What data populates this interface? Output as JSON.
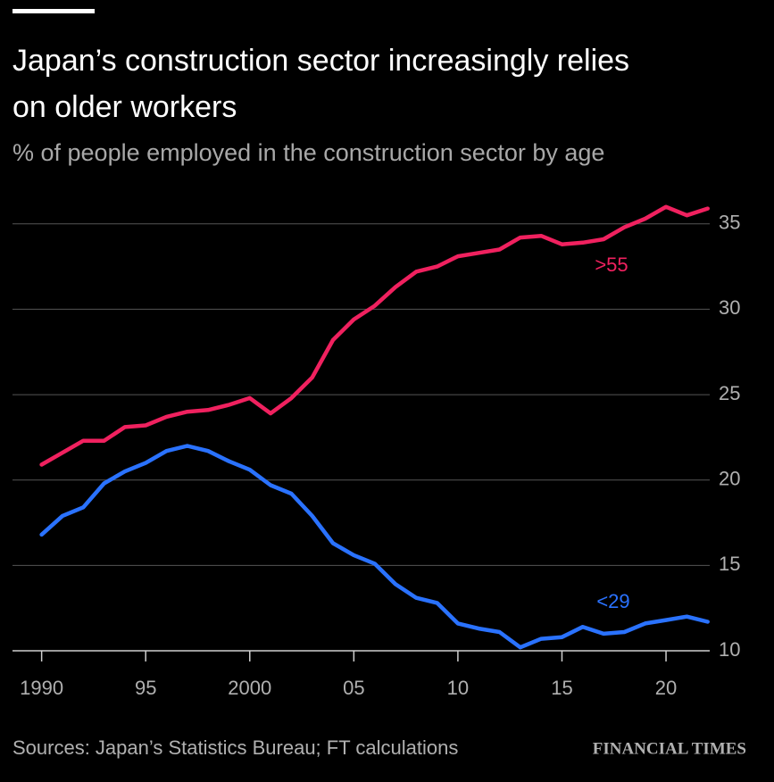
{
  "chart_data": {
    "type": "line",
    "title_lines": [
      "Japan’s construction sector increasingly relies",
      "on older workers"
    ],
    "subtitle": "% of people employed in the construction sector by age",
    "x": [
      1990,
      1991,
      1992,
      1993,
      1994,
      1995,
      1996,
      1997,
      1998,
      1999,
      2000,
      2001,
      2002,
      2003,
      2004,
      2005,
      2006,
      2007,
      2008,
      2009,
      2010,
      2011,
      2012,
      2013,
      2014,
      2015,
      2016,
      2017,
      2018,
      2019,
      2020,
      2021,
      2022
    ],
    "series": [
      {
        "name": ">55",
        "color": "#f0215f",
        "values": [
          20.9,
          21.6,
          22.3,
          22.3,
          23.1,
          23.2,
          23.7,
          24.0,
          24.1,
          24.4,
          24.8,
          23.9,
          24.8,
          26.0,
          28.2,
          29.4,
          30.2,
          31.3,
          32.2,
          32.5,
          33.1,
          33.3,
          33.5,
          34.2,
          34.3,
          33.8,
          33.9,
          34.1,
          34.8,
          35.3,
          36.0,
          35.5,
          35.9
        ]
      },
      {
        "name": "<29",
        "color": "#2a72ff",
        "values": [
          16.8,
          17.9,
          18.4,
          19.8,
          20.5,
          21.0,
          21.7,
          22.0,
          21.7,
          21.1,
          20.6,
          19.7,
          19.2,
          17.9,
          16.3,
          15.6,
          15.1,
          13.9,
          13.1,
          12.8,
          11.6,
          11.3,
          11.1,
          10.2,
          10.7,
          10.8,
          11.4,
          11.0,
          11.1,
          11.6,
          11.8,
          12.0,
          11.7
        ]
      }
    ],
    "xlim": [
      1988.6,
      2022.1
    ],
    "ylim": [
      10,
      36.4
    ],
    "xticks": [
      1990,
      {
        "value": 1995,
        "label": "95"
      },
      2000,
      {
        "value": 2005,
        "label": "05"
      },
      {
        "value": 2010,
        "label": "10"
      },
      {
        "value": 2015,
        "label": "15"
      },
      {
        "value": 2020,
        "label": "20"
      }
    ],
    "yticks": [
      10,
      15,
      20,
      25,
      30,
      35
    ],
    "grid": true,
    "source": "Sources: Japan’s Statistics Bureau; FT calculations",
    "brand": "FINANCIAL TIMES"
  }
}
